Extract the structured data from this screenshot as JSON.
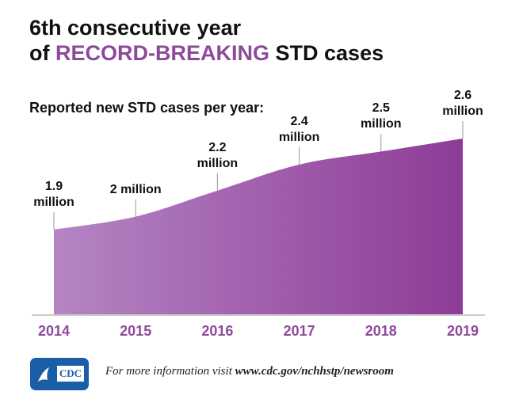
{
  "chart_data": {
    "type": "area",
    "title_line1": "6th consecutive year",
    "title_line2_start": "of",
    "title_highlight": "RECORD-BREAKING",
    "title_line2_end": "STD cases",
    "subtitle": "Reported new STD cases per year:",
    "categories": [
      "2014",
      "2015",
      "2016",
      "2017",
      "2018",
      "2019"
    ],
    "values": [
      1.9,
      2,
      2.2,
      2.4,
      2.5,
      2.6
    ],
    "value_labels": [
      "1.9 million",
      "2 million",
      "2.2 million",
      "2.4 million",
      "2.5 million",
      "2.6 million"
    ],
    "color_start": "#b585c3",
    "color_end": "#8d3c96",
    "highlight_color": "#8e4a9a",
    "footer_text": "For more information visit",
    "footer_link": "www.cdc.gov/nchhstp/newsroom",
    "logo_text": "CDC"
  }
}
